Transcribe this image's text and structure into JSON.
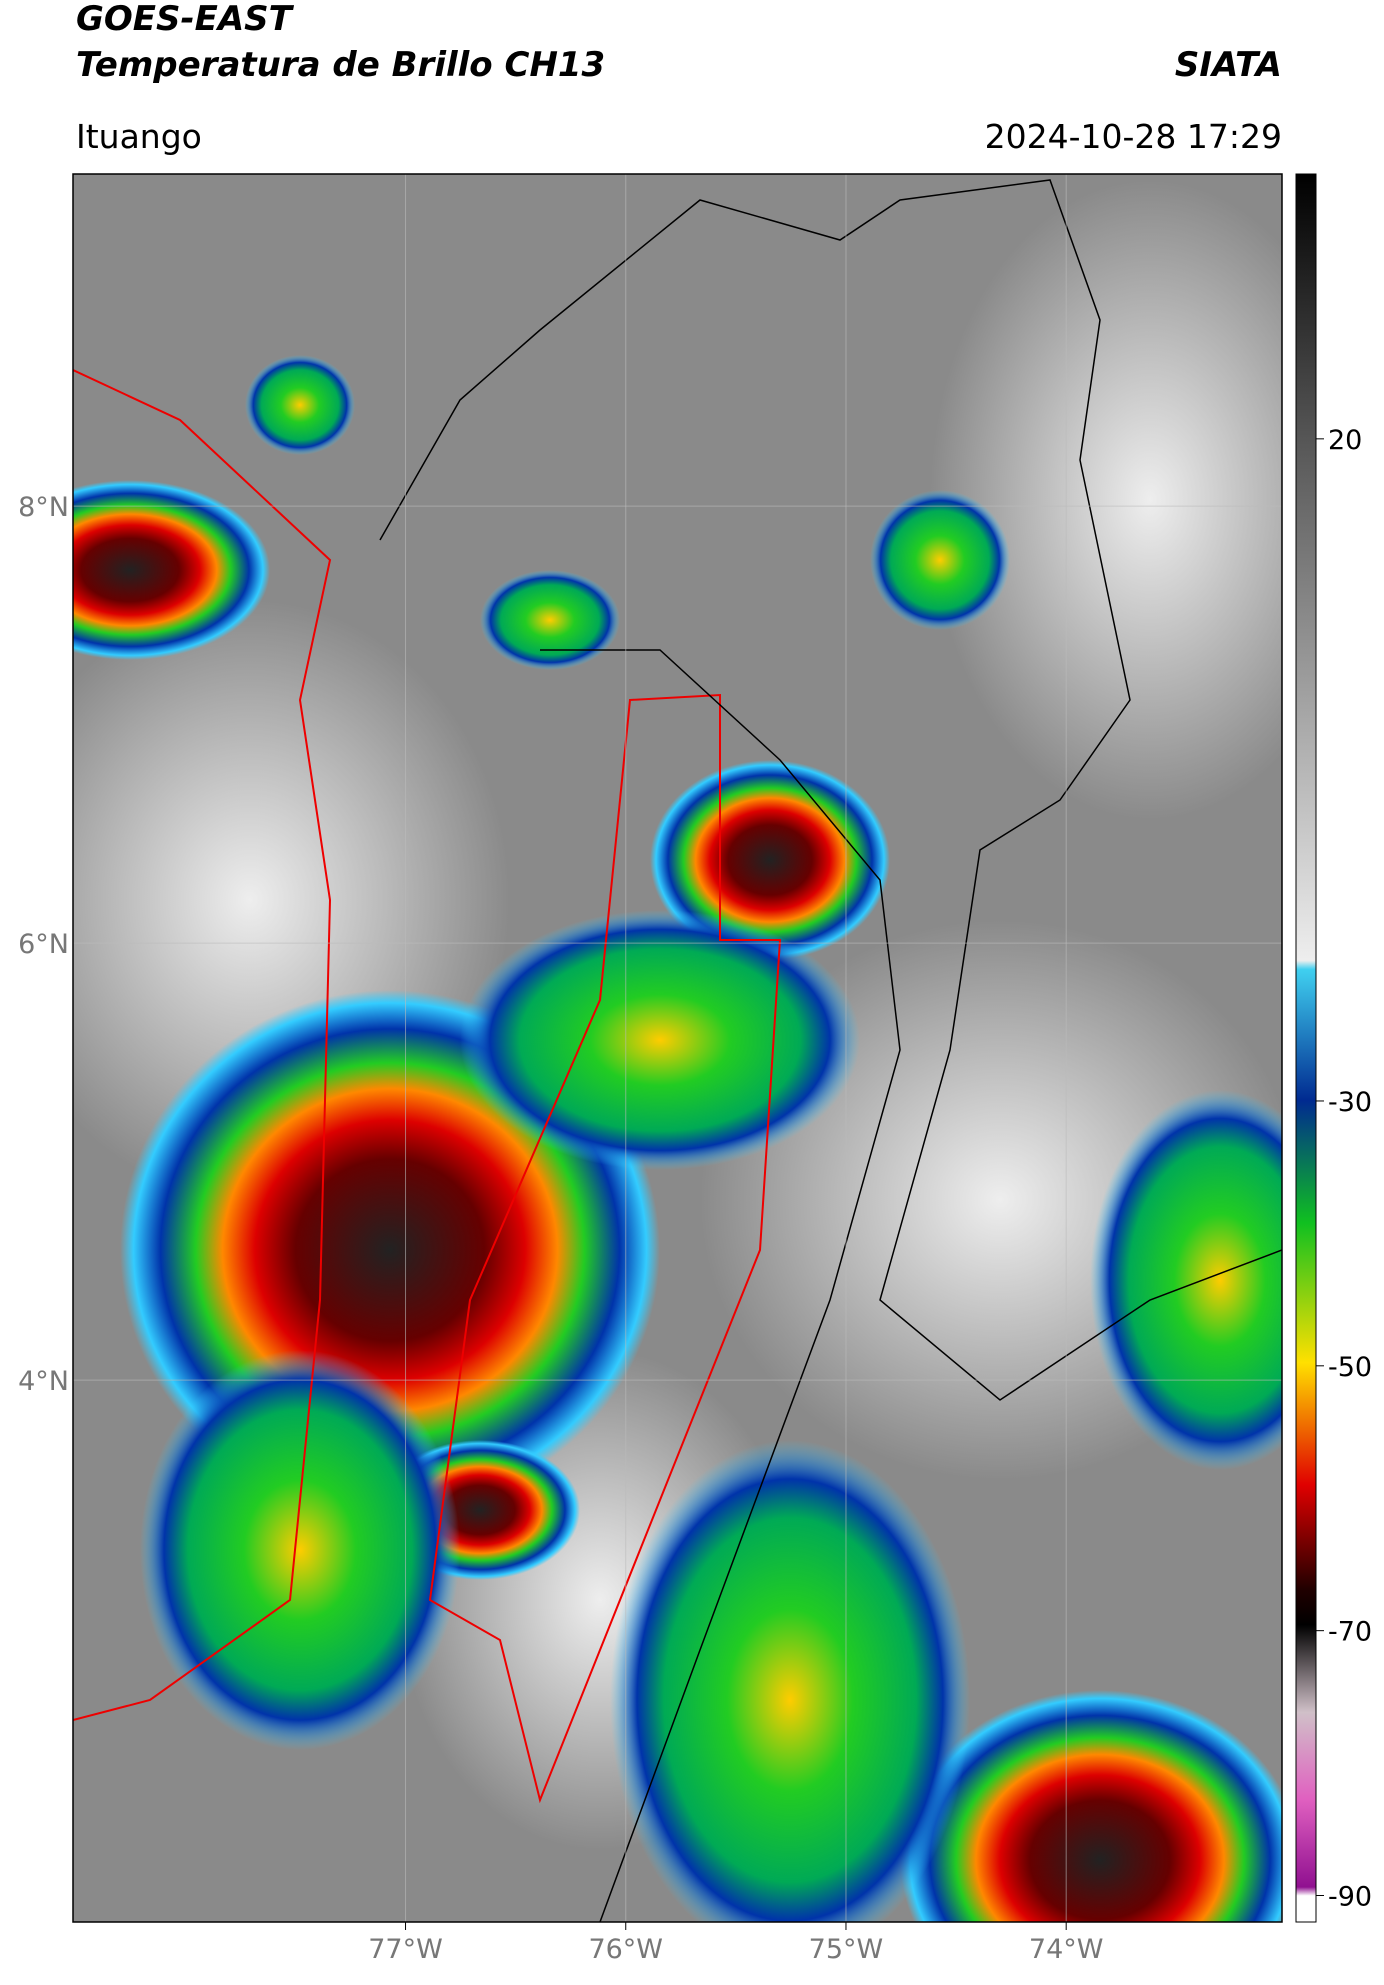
{
  "header": {
    "satellite": "GOES-EAST",
    "product": "Temperatura de Brillo CH13",
    "source": "SIATA",
    "location": "Ituango",
    "datetime": "2024-10-28 17:29"
  },
  "map": {
    "xlim": [
      -78.51,
      -73.02
    ],
    "ylim": [
      1.52,
      9.52
    ],
    "grid": true,
    "xticks": [
      {
        "value": -77,
        "label": "77°W"
      },
      {
        "value": -76,
        "label": "76°W"
      },
      {
        "value": -75,
        "label": "75°W"
      },
      {
        "value": -74,
        "label": "74°W"
      }
    ],
    "yticks": [
      {
        "value": 4,
        "label": "4°N"
      },
      {
        "value": 6,
        "label": "6°N"
      },
      {
        "value": 8,
        "label": "8°N"
      }
    ]
  },
  "colorbar": {
    "lim": [
      -92,
      40
    ],
    "ticks": [
      20,
      -30,
      -50,
      -70,
      -90
    ]
  }
}
